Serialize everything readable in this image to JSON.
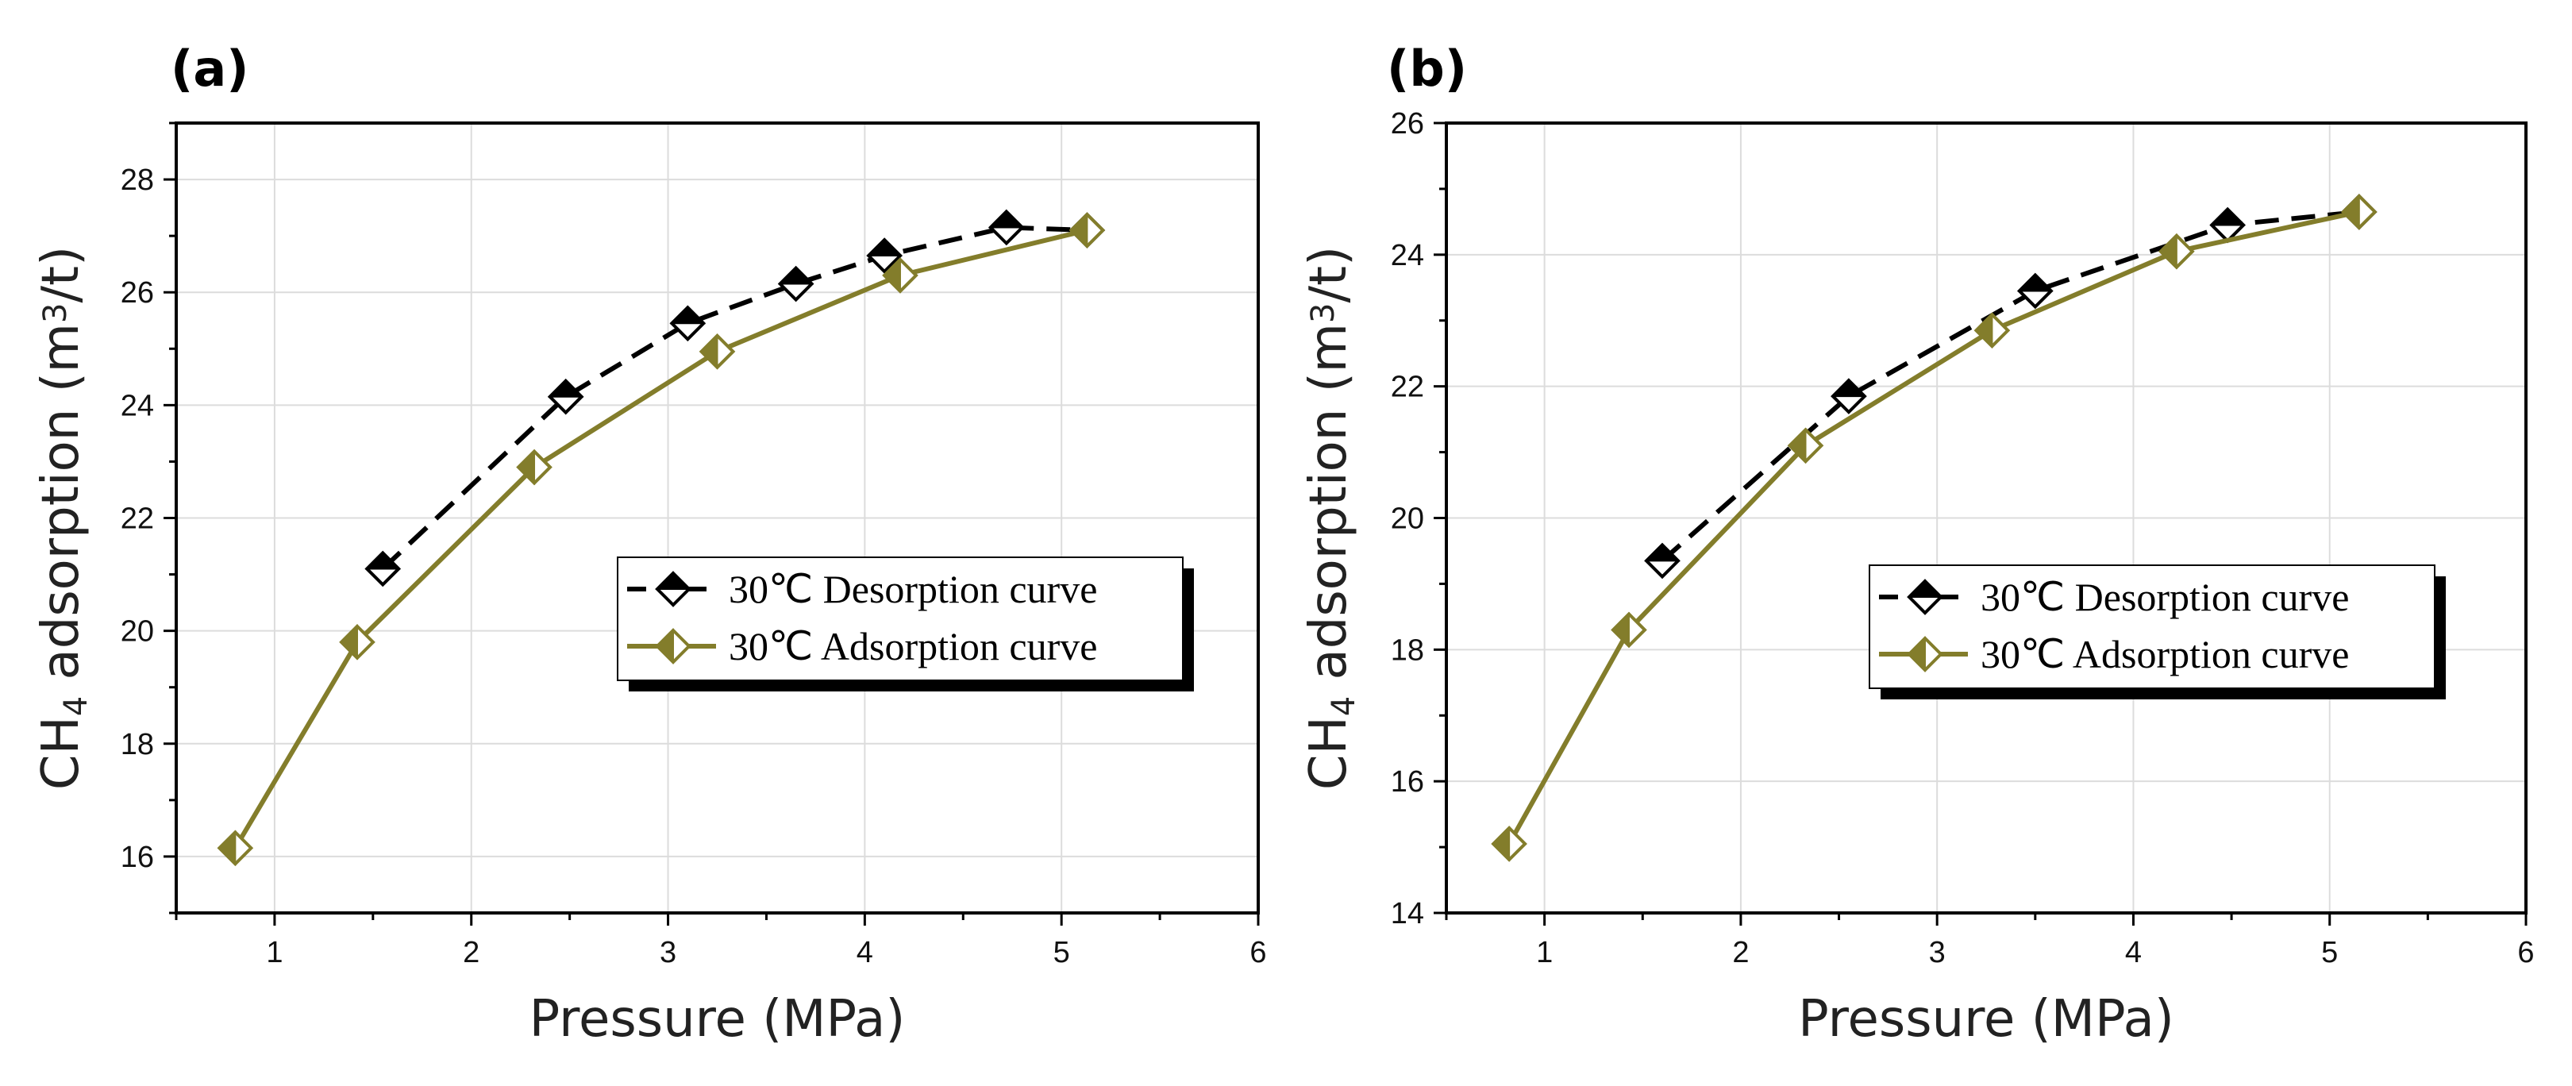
{
  "colors": {
    "desorption": "#000000",
    "adsorption": "#837d2b",
    "grid": "#dcdcdc"
  },
  "chart_data": [
    {
      "type": "line",
      "panel_label": "(a)",
      "xlabel": "Pressure (MPa)",
      "ylabel": "CH4 adsorption (m3/t)",
      "ylabel_parts": {
        "pre": "CH",
        "sub": "4",
        "mid": " adsorption (m",
        "sup": "3",
        "post": "/t)"
      },
      "xlim": [
        0.5,
        6
      ],
      "ylim": [
        15,
        29
      ],
      "xticks": [
        1,
        2,
        3,
        4,
        5,
        6
      ],
      "yticks": [
        16,
        18,
        20,
        22,
        24,
        26,
        28
      ],
      "grid": true,
      "legend_position": "center-right",
      "series": [
        {
          "name": "30℃ Desorption curve",
          "style": "dashed",
          "marker": "diamond-top-filled",
          "x": [
            1.55,
            2.48,
            3.1,
            3.65,
            4.1,
            4.72,
            5.13
          ],
          "y": [
            21.1,
            24.15,
            25.45,
            26.15,
            26.65,
            27.15,
            27.1
          ]
        },
        {
          "name": "30℃ Adsorption curve",
          "style": "solid",
          "marker": "diamond-left-filled",
          "x": [
            0.8,
            1.42,
            2.32,
            3.25,
            4.18,
            5.13
          ],
          "y": [
            16.15,
            19.8,
            22.9,
            24.95,
            26.3,
            27.1
          ]
        }
      ]
    },
    {
      "type": "line",
      "panel_label": "(b)",
      "xlabel": "Pressure (MPa)",
      "ylabel": "CH4 adsorption (m3/t)",
      "ylabel_parts": {
        "pre": "CH",
        "sub": "4",
        "mid": " adsorption (m",
        "sup": "3",
        "post": "/t)"
      },
      "xlim": [
        0.5,
        6
      ],
      "ylim": [
        14,
        26
      ],
      "xticks": [
        1,
        2,
        3,
        4,
        5,
        6
      ],
      "yticks": [
        14,
        16,
        18,
        20,
        22,
        24,
        26
      ],
      "grid": true,
      "legend_position": "center-right",
      "series": [
        {
          "name": "30℃ Desorption curve",
          "style": "dashed",
          "marker": "diamond-top-filled",
          "x": [
            1.6,
            2.55,
            3.5,
            4.48,
            5.15
          ],
          "y": [
            19.35,
            21.85,
            23.45,
            24.45,
            24.65
          ]
        },
        {
          "name": "30℃ Adsorption curve",
          "style": "solid",
          "marker": "diamond-left-filled",
          "x": [
            0.82,
            1.43,
            2.33,
            3.28,
            4.22,
            5.15
          ],
          "y": [
            15.05,
            18.3,
            21.1,
            22.85,
            24.05,
            24.65
          ]
        }
      ]
    }
  ]
}
